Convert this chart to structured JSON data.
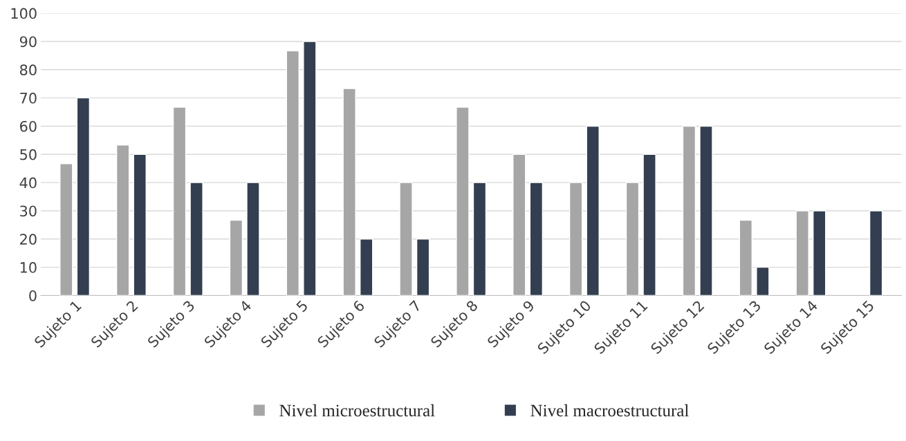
{
  "chart_data": {
    "type": "bar",
    "categories": [
      "Sujeto 1",
      "Sujeto 2",
      "Sujeto 3",
      "Sujeto 4",
      "Sujeto 5",
      "Sujeto 6",
      "Sujeto 7",
      "Sujeto 8",
      "Sujeto 9",
      "Sujeto 10",
      "Sujeto 11",
      "Sujeto 12",
      "Sujeto 13",
      "Sujeto 14",
      "Sujeto 15"
    ],
    "series": [
      {
        "name": "Nivel microestructural",
        "color": "#a6a6a6",
        "values": [
          46.7,
          53.3,
          66.7,
          26.7,
          86.7,
          73.3,
          40,
          66.7,
          50,
          40,
          40,
          60,
          26.7,
          30,
          null
        ]
      },
      {
        "name": "Nivel macroestructural",
        "color": "#333f50",
        "values": [
          70,
          50,
          40,
          40,
          90,
          20,
          20,
          40,
          40,
          60,
          50,
          60,
          10,
          30,
          30
        ]
      }
    ],
    "ylim": [
      0,
      100
    ],
    "yticks": [
      0,
      10,
      20,
      30,
      40,
      50,
      60,
      70,
      80,
      90,
      100
    ],
    "grid": "y",
    "legend": "bottom"
  }
}
